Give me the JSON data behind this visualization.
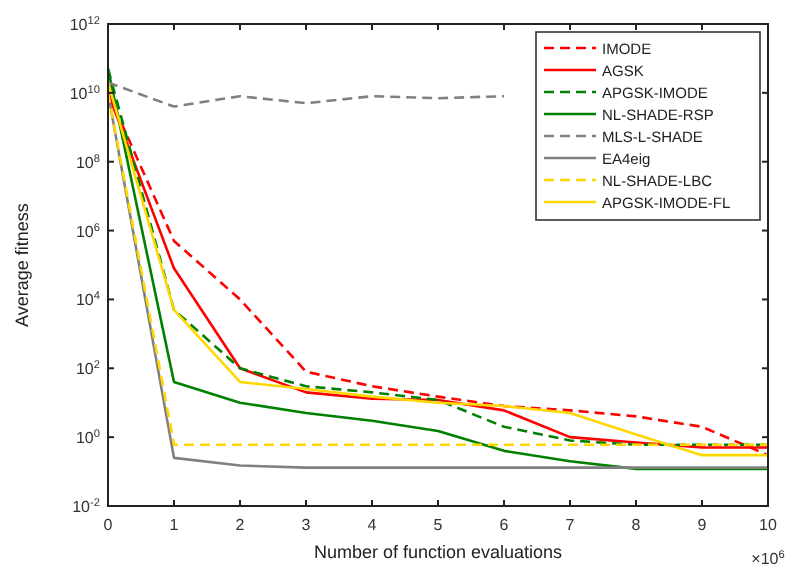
{
  "chart_data": {
    "type": "line",
    "xlabel": "Number of function evaluations",
    "ylabel": "Average fitness",
    "log": "y",
    "grid": false,
    "legend": "top right",
    "x": [
      0,
      1,
      2,
      3,
      4,
      5,
      6,
      7,
      8,
      9,
      10
    ],
    "xlim": [
      0,
      10
    ],
    "xticks": [
      0,
      1,
      2,
      3,
      4,
      5,
      6,
      7,
      8,
      9,
      10
    ],
    "ylim": [
      0.01,
      1000000000000
    ],
    "yticks": [
      {
        "value": 0.01,
        "label": "10$^{-2}$"
      },
      {
        "value": 1,
        "label": "10$^{0}$"
      },
      {
        "value": 100,
        "label": "10$^{2}$"
      },
      {
        "value": 10000,
        "label": "10$^{4}$"
      },
      {
        "value": 1000000,
        "label": "10$^{6}$"
      },
      {
        "value": 100000000,
        "label": "10$^{8}$"
      },
      {
        "value": 10000000000,
        "label": "10$^{10}$"
      },
      {
        "value": 1000000000000,
        "label": "10$^{12}$"
      }
    ],
    "annotations": [
      "×10$^{6}$"
    ],
    "series": [
      {
        "name": "IMODE",
        "color": "#ff0000",
        "line_style": "dashed",
        "values": [
          10000000000,
          500000,
          10000,
          80,
          30,
          15,
          8,
          6,
          4,
          2,
          0.3
        ]
      },
      {
        "name": "AGSK",
        "color": "#ff0000",
        "line_style": "solid",
        "values": [
          10000000000,
          80000,
          100,
          20,
          13,
          12,
          6,
          1,
          0.7,
          0.5,
          0.5
        ]
      },
      {
        "name": "APGSK-IMODE",
        "color": "#008000",
        "line_style": "dashed",
        "values": [
          50000000000,
          5000,
          100,
          30,
          20,
          12,
          2,
          0.8,
          0.6,
          0.6,
          0.6
        ]
      },
      {
        "name": "NL-SHADE-RSP",
        "color": "#008000",
        "line_style": "solid",
        "values": [
          50000000000,
          40,
          10,
          5,
          3,
          1.5,
          0.4,
          0.2,
          0.12,
          0.12,
          0.12
        ]
      },
      {
        "name": "MLS-L-SHADE",
        "color": "#808080",
        "line_style": "dashed",
        "values": [
          20000000000,
          4000000000,
          8000000000,
          5000000000,
          8000000000,
          7000000000,
          8000000000,
          null,
          null,
          null,
          null
        ]
      },
      {
        "name": "EA4eig",
        "color": "#808080",
        "line_style": "solid",
        "values": [
          10000000000,
          0.25,
          0.15,
          0.13,
          0.13,
          0.13,
          0.13,
          0.13,
          0.13,
          0.13,
          0.13
        ]
      },
      {
        "name": "NL-SHADE-LBC",
        "color": "#ffd700",
        "line_style": "dashed",
        "values": [
          10000000000,
          0.6,
          0.6,
          0.6,
          0.6,
          0.6,
          0.6,
          0.6,
          0.6,
          0.6,
          0.6
        ]
      },
      {
        "name": "APGSK-IMODE-FL",
        "color": "#ffd700",
        "line_style": "solid",
        "values": [
          20000000000,
          5000,
          40,
          25,
          15,
          10,
          8,
          5,
          1.2,
          0.3,
          0.3
        ]
      }
    ]
  }
}
